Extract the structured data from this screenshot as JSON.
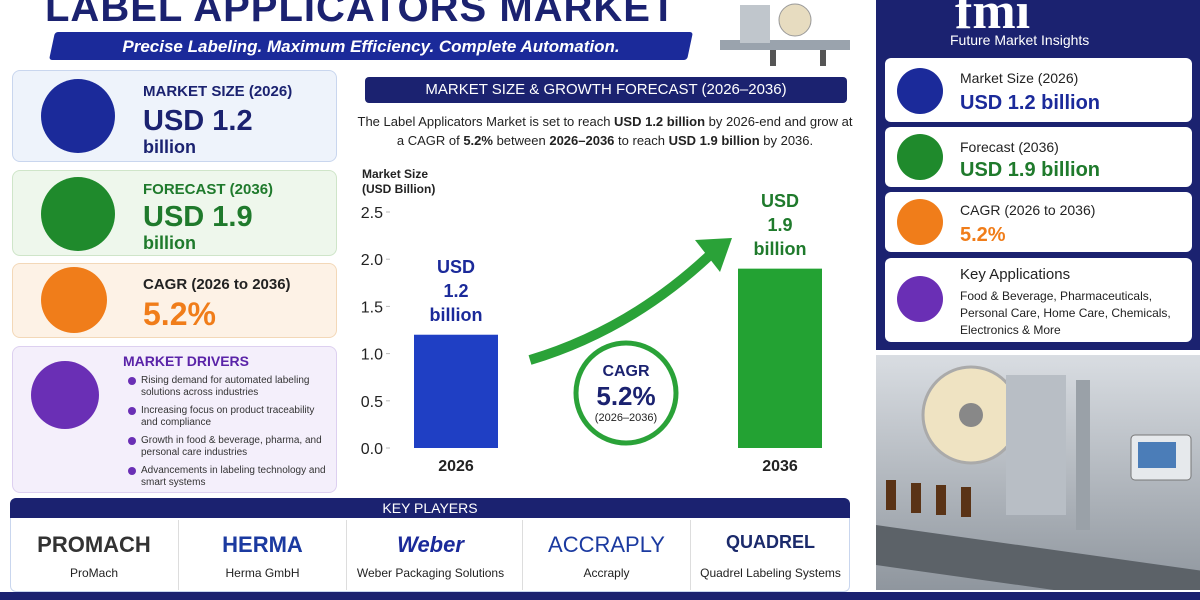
{
  "header": {
    "title": "LABEL APPLICATORS MARKET",
    "subtitle": "Precise Labeling. Maximum Efficiency. Complete Automation."
  },
  "summary_cards": [
    {
      "label": "MARKET SIZE (2026)",
      "value": "USD 1.2",
      "unit": "billion"
    },
    {
      "label": "FORECAST (2036)",
      "value": "USD 1.9",
      "unit": "billion"
    },
    {
      "label": "CAGR (2026 to 2036)",
      "value": "5.2%"
    }
  ],
  "drivers": {
    "title": "MARKET DRIVERS",
    "items": [
      "Rising demand for automated labeling solutions across industries",
      "Increasing focus on product traceability and compliance",
      "Growth in food & beverage, pharma, and personal care industries",
      "Advancements in labeling technology and smart systems"
    ]
  },
  "chart_data": {
    "type": "bar",
    "title": "MARKET SIZE & GROWTH FORECAST (2026–2036)",
    "description": [
      "The Label Applicators Market is set to reach ",
      "USD 1.2 billion",
      " by 2026-end and grow at a CAGR of ",
      "5.2%",
      " between ",
      "2026–2036",
      " to reach ",
      "USD 1.9 billion",
      " by 2036."
    ],
    "y_label": "Market Size (USD Billion)",
    "categories": [
      "2026",
      "2036"
    ],
    "values": [
      1.2,
      1.9
    ],
    "value_labels": [
      "USD 1.2 billion",
      "USD 1.9 billion"
    ],
    "colors": [
      "#1f3fc4",
      "#23a233"
    ],
    "ylim": [
      0,
      2.5
    ],
    "yticks": [
      {
        "value": 0,
        "label": "0.0"
      },
      {
        "value": 0.5,
        "label": "0.5"
      },
      {
        "value": 1,
        "label": "1.0"
      },
      {
        "value": 1.5,
        "label": "1.5"
      },
      {
        "value": 2,
        "label": "2.0"
      },
      {
        "value": 2.5,
        "label": "2.5"
      }
    ],
    "cagr": {
      "label": "CAGR",
      "value": "5.2%",
      "period": "(2026–2036)"
    }
  },
  "key_players": {
    "title": "KEY PLAYERS",
    "players": [
      {
        "logo": "PROMACH",
        "name": "ProMach"
      },
      {
        "logo": "HERMA",
        "name": "Herma GmbH"
      },
      {
        "logo": "Weber",
        "name": "Weber Packaging Solutions"
      },
      {
        "logo": "ACCRAPLY",
        "name": "Accraply"
      },
      {
        "logo": "QUADREL",
        "name": "Quadrel Labeling Systems"
      }
    ]
  },
  "sidebar": {
    "brand": "fmi",
    "brand_name": "Future Market Insights",
    "cards": [
      {
        "label": "Market Size (2026)",
        "value": "USD 1.2 billion"
      },
      {
        "label": "Forecast (2036)",
        "value": "USD 1.9 billion"
      },
      {
        "label": "CAGR (2026 to 2036)",
        "value": "5.2%"
      }
    ],
    "applications": {
      "label": "Key Applications",
      "text": "Food & Beverage, Pharmaceuticals, Personal Care, Home Care, Chemicals, Electronics & More"
    }
  }
}
